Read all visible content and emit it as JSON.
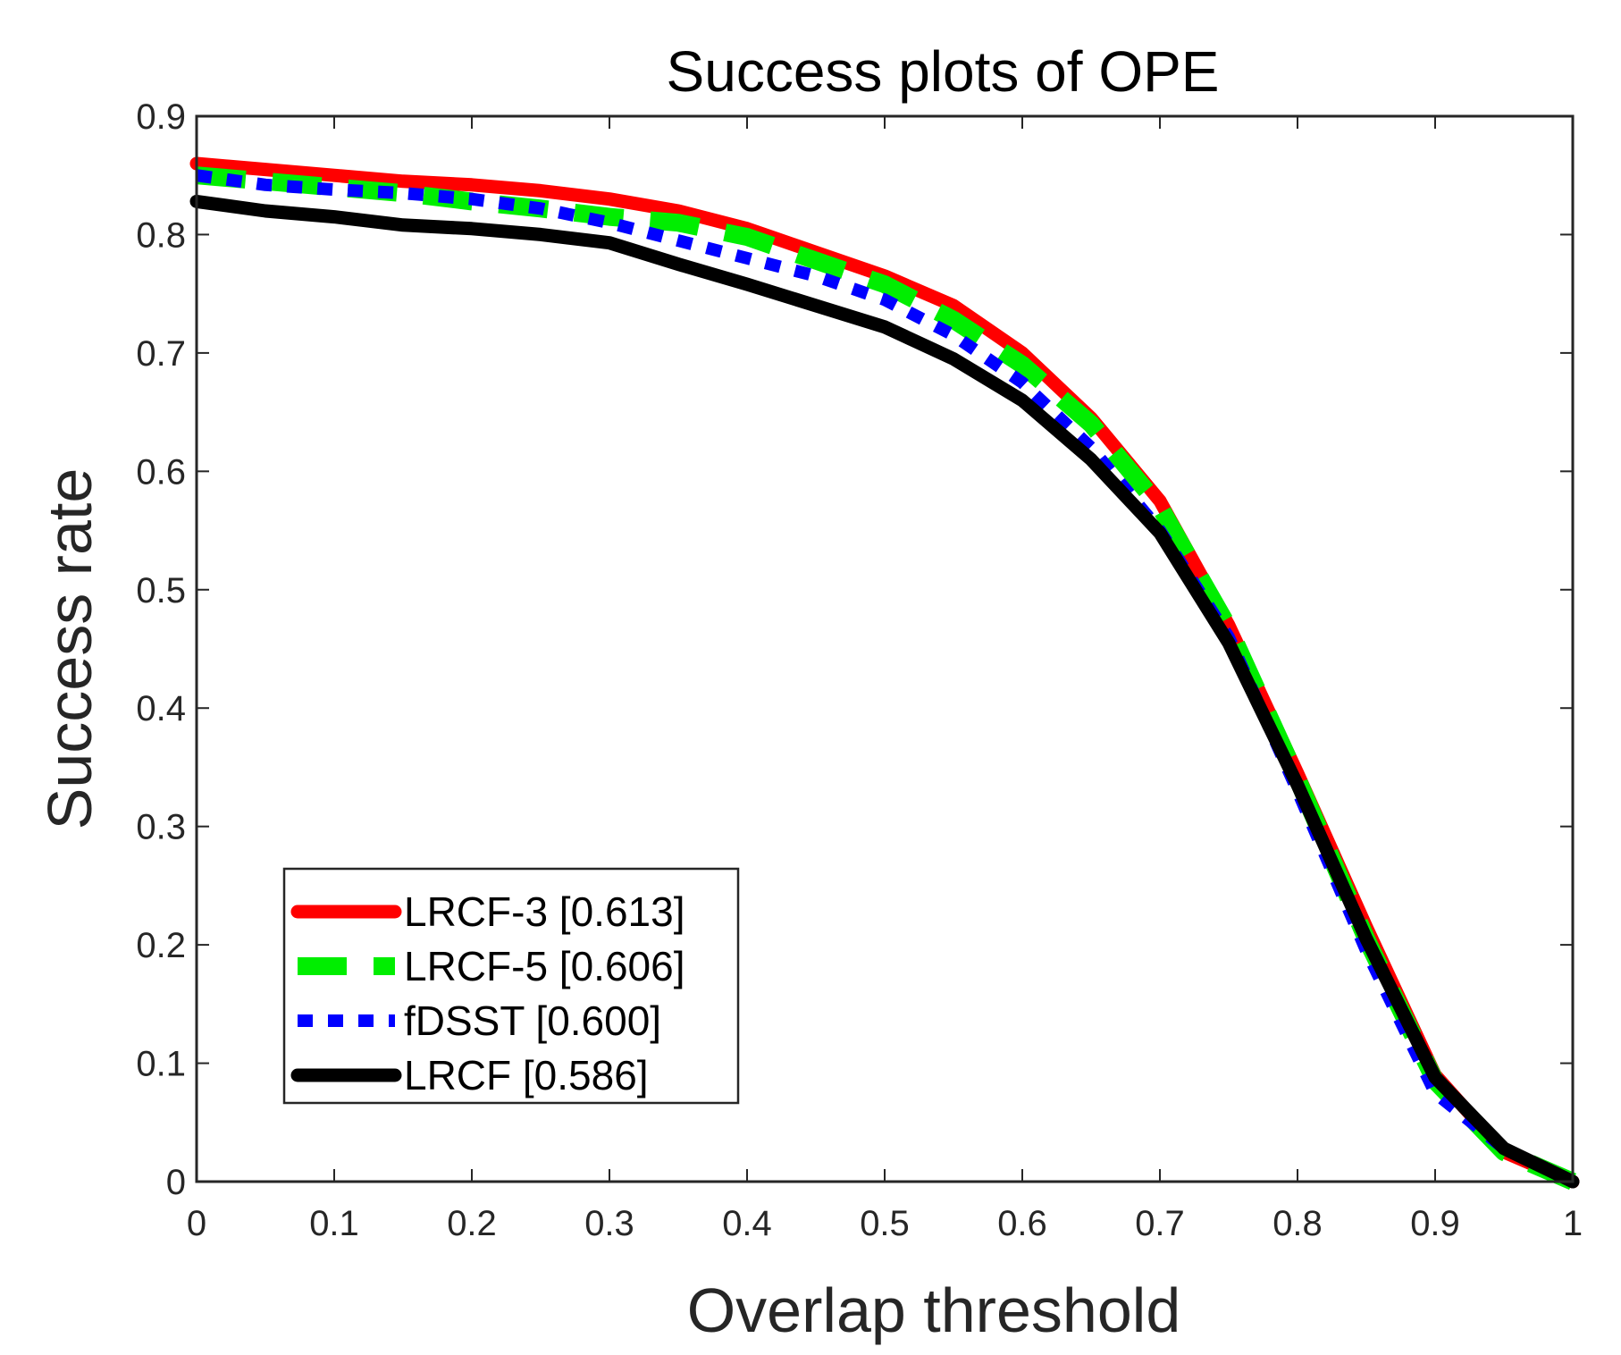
{
  "chart_data": {
    "type": "line",
    "title": "Success plots of OPE",
    "xlabel": "Overlap threshold",
    "ylabel": "Success rate",
    "xlim": [
      0,
      1
    ],
    "ylim": [
      0,
      0.9
    ],
    "xticks": [
      0,
      0.1,
      0.2,
      0.3,
      0.4,
      0.5,
      0.6,
      0.7,
      0.8,
      0.9,
      1
    ],
    "xtick_labels": [
      "0",
      "0.1",
      "0.2",
      "0.3",
      "0.4",
      "0.5",
      "0.6",
      "0.7",
      "0.8",
      "0.9",
      "1"
    ],
    "yticks": [
      0,
      0.1,
      0.2,
      0.3,
      0.4,
      0.5,
      0.6,
      0.7,
      0.8,
      0.9
    ],
    "ytick_labels": [
      "0",
      "0.1",
      "0.2",
      "0.3",
      "0.4",
      "0.5",
      "0.6",
      "0.7",
      "0.8",
      "0.9"
    ],
    "grid": false,
    "legend_position": "bottom-left",
    "x": [
      0,
      0.05,
      0.1,
      0.15,
      0.2,
      0.25,
      0.3,
      0.35,
      0.4,
      0.45,
      0.5,
      0.55,
      0.6,
      0.65,
      0.7,
      0.75,
      0.8,
      0.85,
      0.9,
      0.95,
      1.0
    ],
    "series": [
      {
        "name": "LRCF-3 [0.613]",
        "color": "#ff0000",
        "style": "solid",
        "values": [
          0.86,
          0.855,
          0.85,
          0.845,
          0.842,
          0.837,
          0.83,
          0.82,
          0.805,
          0.785,
          0.765,
          0.74,
          0.7,
          0.645,
          0.575,
          0.47,
          0.345,
          0.215,
          0.09,
          0.025,
          0.0
        ]
      },
      {
        "name": "LRCF-5 [0.606]",
        "color": "#00ee00",
        "style": "dashed",
        "values": [
          0.85,
          0.845,
          0.84,
          0.835,
          0.828,
          0.822,
          0.815,
          0.81,
          0.798,
          0.778,
          0.758,
          0.728,
          0.69,
          0.64,
          0.57,
          0.468,
          0.34,
          0.205,
          0.085,
          0.025,
          0.0
        ]
      },
      {
        "name": "fDSST [0.600]",
        "color": "#0000ff",
        "style": "dotted",
        "values": [
          0.85,
          0.842,
          0.838,
          0.835,
          0.83,
          0.822,
          0.81,
          0.795,
          0.78,
          0.765,
          0.745,
          0.715,
          0.675,
          0.62,
          0.55,
          0.46,
          0.33,
          0.195,
          0.075,
          0.028,
          0.0
        ]
      },
      {
        "name": "LRCF [0.586]",
        "color": "#000000",
        "style": "solid",
        "values": [
          0.828,
          0.82,
          0.815,
          0.808,
          0.805,
          0.8,
          0.793,
          0.775,
          0.758,
          0.74,
          0.722,
          0.695,
          0.66,
          0.61,
          0.548,
          0.455,
          0.335,
          0.205,
          0.088,
          0.028,
          0.0
        ]
      }
    ]
  }
}
